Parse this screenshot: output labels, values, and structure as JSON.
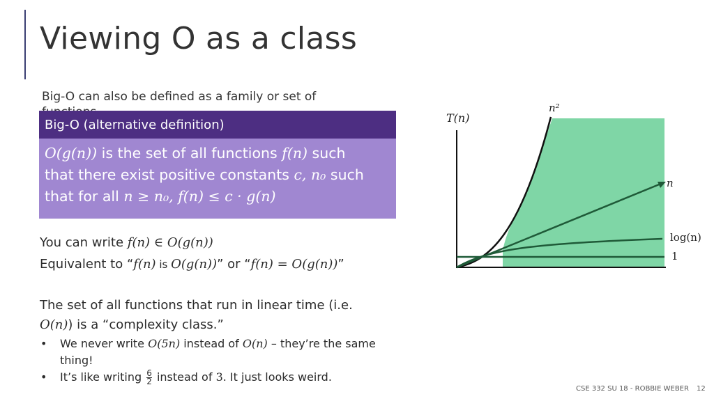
{
  "slide": {
    "title": "Viewing O as a class",
    "intro": "Big-O can also be defined as a family or set of functions.",
    "definition": {
      "header": "Big-O (alternative definition)",
      "line1_a": "O(g(n))",
      "line1_b": " is the set of all functions ",
      "line1_c": "f(n)",
      "line1_d": " such",
      "line2_a": "that there exist positive constants ",
      "line2_b": "c, n₀",
      "line2_c": " such",
      "line3_a": "that for all ",
      "line3_b": "n ≥ n₀,  f(n) ≤ c · g(n)"
    },
    "write_a": "You can write ",
    "write_b": "f(n) ∈ O(g(n))",
    "equiv_a": "Equivalent to “",
    "equiv_b": "f(n)",
    "equiv_c": " is ",
    "equiv_d": "O(g(n))",
    "equiv_e": "” or “",
    "equiv_f": "f(n) = O(g(n))",
    "equiv_g": "”",
    "linear_1": "The set of all functions that run in linear time (i.e.",
    "linear_2a": "O(n)",
    "linear_2b": ") is a “complexity class.”",
    "bullet1_a": "We never write ",
    "bullet1_b": "O(5n)",
    "bullet1_c": " instead of ",
    "bullet1_d": "O(n)",
    "bullet1_e": " – they’re the same",
    "bullet1_f": "thing!",
    "bullet2_a": "It’s like writing ",
    "bullet2_num": "6",
    "bullet2_den": "2",
    "bullet2_b": " instead of ",
    "bullet2_c": "3",
    "bullet2_d": ". It just looks weird.",
    "bullet_char": "•",
    "footer_course": "CSE 332 SU 18 - ROBBIE WEBER",
    "footer_page": "12"
  },
  "graph": {
    "y_label": "T(n)",
    "curve_labels": {
      "n2": "n²",
      "n": "n",
      "log": "log(n)",
      "one": "1"
    },
    "shade_color": "#7fd6a6",
    "curve_color": "#111111",
    "green_curve_color": "#1f5a38"
  }
}
